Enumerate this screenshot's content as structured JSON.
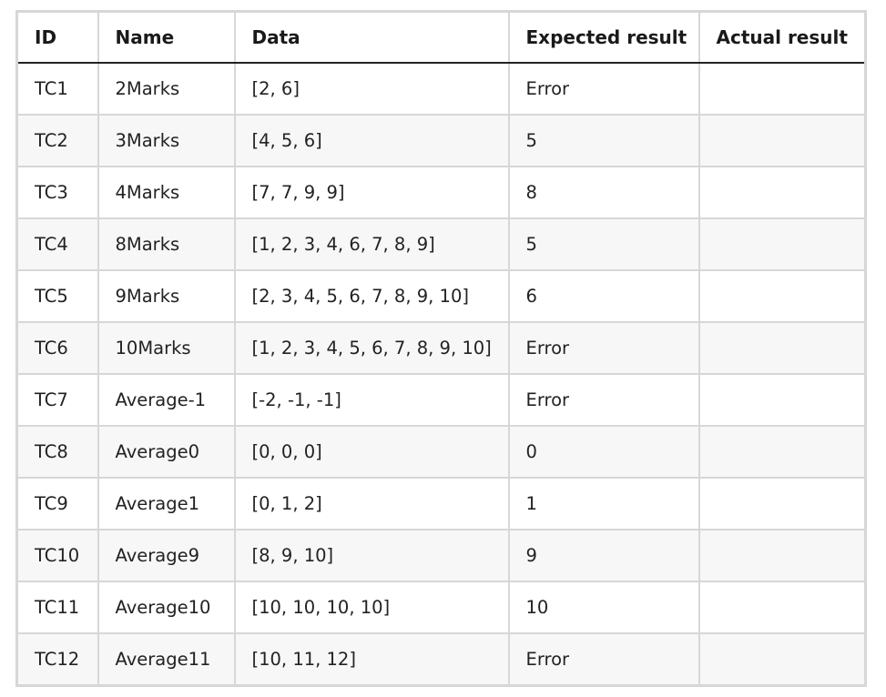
{
  "table": {
    "headers": [
      "ID",
      "Name",
      "Data",
      "Expected result",
      "Actual result"
    ],
    "rows": [
      {
        "id": "TC1",
        "name": "2Marks",
        "data": "[2, 6]",
        "expected": "Error",
        "actual": ""
      },
      {
        "id": "TC2",
        "name": "3Marks",
        "data": "[4, 5, 6]",
        "expected": "5",
        "actual": ""
      },
      {
        "id": "TC3",
        "name": "4Marks",
        "data": "[7, 7, 9, 9]",
        "expected": "8",
        "actual": ""
      },
      {
        "id": "TC4",
        "name": "8Marks",
        "data": "[1, 2, 3, 4, 6, 7, 8, 9]",
        "expected": "5",
        "actual": ""
      },
      {
        "id": "TC5",
        "name": "9Marks",
        "data": "[2, 3, 4, 5, 6, 7, 8, 9, 10]",
        "expected": "6",
        "actual": ""
      },
      {
        "id": "TC6",
        "name": "10Marks",
        "data": "[1, 2, 3, 4, 5, 6, 7, 8, 9, 10]",
        "expected": "Error",
        "actual": ""
      },
      {
        "id": "TC7",
        "name": "Average-1",
        "data": "[-2, -1, -1]",
        "expected": "Error",
        "actual": ""
      },
      {
        "id": "TC8",
        "name": "Average0",
        "data": "[0, 0, 0]",
        "expected": "0",
        "actual": ""
      },
      {
        "id": "TC9",
        "name": "Average1",
        "data": "[0, 1, 2]",
        "expected": "1",
        "actual": ""
      },
      {
        "id": "TC10",
        "name": "Average9",
        "data": "[8, 9, 10]",
        "expected": "9",
        "actual": ""
      },
      {
        "id": "TC11",
        "name": "Average10",
        "data": "[10, 10, 10, 10]",
        "expected": "10",
        "actual": ""
      },
      {
        "id": "TC12",
        "name": "Average11",
        "data": "[10, 11, 12]",
        "expected": "Error",
        "actual": ""
      }
    ]
  }
}
